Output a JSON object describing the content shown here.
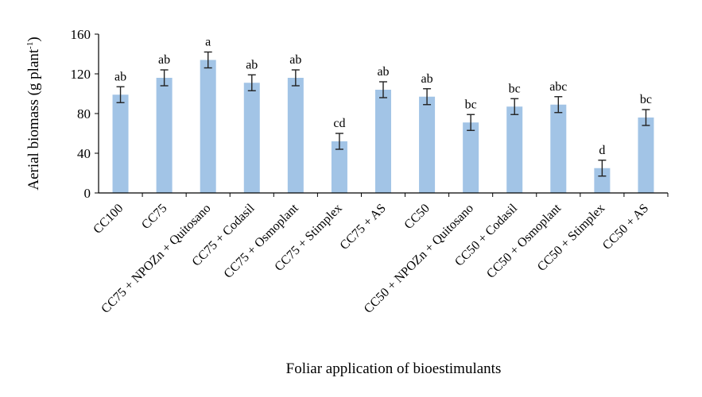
{
  "chart_data": {
    "type": "bar",
    "xlabel": "Foliar application of bioestimulants",
    "ylabel": {
      "prefix": "Aerial biomass (g plant",
      "sup": "-1",
      "suffix": ")"
    },
    "ylim": [
      0,
      160
    ],
    "yticks": [
      0,
      40,
      80,
      120,
      160
    ],
    "grid": false,
    "bar_color": "#a2c4e6",
    "categories": [
      "CC100",
      "CC75",
      "CC75 + NPOZn + Quitosano",
      "CC75 + Codasil",
      "CC75 + Osmoplant",
      "CC75 + Stimplex",
      "CC75 + AS",
      "CC50",
      "CC50 + NPOZn + Quitosano",
      "CC50 + Codasil",
      "CC50 + Osmoplant",
      "CC50 + Stimplex",
      "CC50 + AS"
    ],
    "values": [
      99,
      116,
      134,
      111,
      116,
      52,
      104,
      97,
      71,
      87,
      89,
      25,
      76
    ],
    "errors": [
      8,
      8,
      8,
      8,
      8,
      8,
      8,
      8,
      8,
      8,
      8,
      8,
      8
    ],
    "letters": [
      "ab",
      "ab",
      "a",
      "ab",
      "ab",
      "cd",
      "ab",
      "ab",
      "bc",
      "bc",
      "abc",
      "d",
      "bc"
    ]
  }
}
